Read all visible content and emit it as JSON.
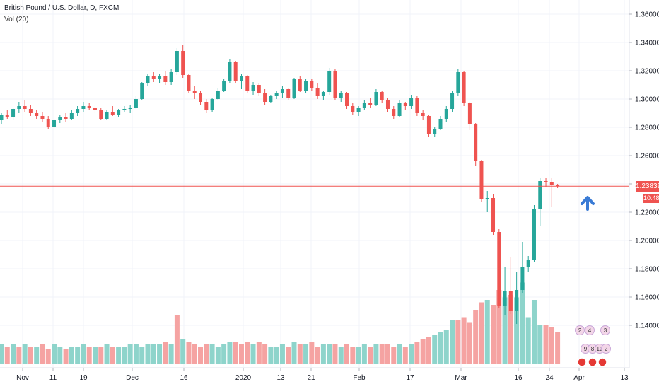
{
  "legend": {
    "symbol": "British Pound / U.S. Dollar, D, FXCM",
    "volume": "Vol (20)"
  },
  "last_price_label": "1.23839",
  "countdown_label": "10:48",
  "colors": {
    "up": "#26a69a",
    "down": "#ef5350",
    "vol_up": "#8ed4cb",
    "vol_down": "#f5a3a2",
    "arrow": "#3a7bd5",
    "grid": "#f0f3fa"
  },
  "events_icon_labels": [
    "2",
    "4",
    "3",
    "9",
    "8",
    "10",
    "2"
  ],
  "chart_data": {
    "type": "candlestick",
    "title": "British Pound / U.S. Dollar, D, FXCM",
    "ylim": [
      1.12,
      1.37
    ],
    "y_ticks": [
      "1.36000",
      "1.34000",
      "1.32000",
      "1.30000",
      "1.28000",
      "1.26000",
      "1.24000",
      "1.22000",
      "1.20000",
      "1.18000",
      "1.16000",
      "1.14000"
    ],
    "x_ticks": [
      "Nov",
      "11",
      "19",
      "Dec",
      "16",
      "2020",
      "13",
      "21",
      "Feb",
      "17",
      "Mar",
      "16",
      "24",
      "Apr",
      "13"
    ],
    "last_price": 1.23839,
    "candles": [
      [
        1.285,
        1.29,
        1.282,
        1.289
      ],
      [
        1.289,
        1.292,
        1.286,
        1.287
      ],
      [
        1.287,
        1.294,
        1.285,
        1.293
      ],
      [
        1.293,
        1.298,
        1.29,
        1.295
      ],
      [
        1.295,
        1.299,
        1.291,
        1.293
      ],
      [
        1.293,
        1.296,
        1.288,
        1.29
      ],
      [
        1.29,
        1.292,
        1.286,
        1.288
      ],
      [
        1.288,
        1.291,
        1.284,
        1.286
      ],
      [
        1.286,
        1.288,
        1.279,
        1.28
      ],
      [
        1.28,
        1.286,
        1.279,
        1.285
      ],
      [
        1.285,
        1.289,
        1.283,
        1.287
      ],
      [
        1.287,
        1.29,
        1.284,
        1.286
      ],
      [
        1.286,
        1.292,
        1.285,
        1.29
      ],
      [
        1.29,
        1.295,
        1.288,
        1.293
      ],
      [
        1.293,
        1.298,
        1.291,
        1.295
      ],
      [
        1.295,
        1.297,
        1.292,
        1.294
      ],
      [
        1.294,
        1.296,
        1.29,
        1.292
      ],
      [
        1.292,
        1.294,
        1.285,
        1.286
      ],
      [
        1.286,
        1.292,
        1.285,
        1.291
      ],
      [
        1.291,
        1.295,
        1.288,
        1.289
      ],
      [
        1.289,
        1.293,
        1.287,
        1.292
      ],
      [
        1.292,
        1.295,
        1.291,
        1.293
      ],
      [
        1.293,
        1.296,
        1.29,
        1.294
      ],
      [
        1.294,
        1.302,
        1.293,
        1.3
      ],
      [
        1.3,
        1.312,
        1.299,
        1.311
      ],
      [
        1.311,
        1.318,
        1.309,
        1.316
      ],
      [
        1.316,
        1.319,
        1.312,
        1.314
      ],
      [
        1.314,
        1.318,
        1.311,
        1.316
      ],
      [
        1.316,
        1.32,
        1.31,
        1.312
      ],
      [
        1.312,
        1.321,
        1.31,
        1.319
      ],
      [
        1.319,
        1.336,
        1.317,
        1.334
      ],
      [
        1.334,
        1.338,
        1.315,
        1.317
      ],
      [
        1.317,
        1.318,
        1.304,
        1.306
      ],
      [
        1.306,
        1.309,
        1.3,
        1.304
      ],
      [
        1.304,
        1.306,
        1.296,
        1.298
      ],
      [
        1.298,
        1.3,
        1.29,
        1.292
      ],
      [
        1.292,
        1.301,
        1.291,
        1.3
      ],
      [
        1.3,
        1.308,
        1.299,
        1.306
      ],
      [
        1.306,
        1.314,
        1.305,
        1.313
      ],
      [
        1.313,
        1.328,
        1.311,
        1.326
      ],
      [
        1.326,
        1.327,
        1.311,
        1.313
      ],
      [
        1.313,
        1.318,
        1.307,
        1.316
      ],
      [
        1.316,
        1.317,
        1.304,
        1.306
      ],
      [
        1.306,
        1.312,
        1.303,
        1.31
      ],
      [
        1.31,
        1.311,
        1.302,
        1.304
      ],
      [
        1.304,
        1.307,
        1.296,
        1.298
      ],
      [
        1.298,
        1.303,
        1.297,
        1.302
      ],
      [
        1.302,
        1.306,
        1.3,
        1.304
      ],
      [
        1.304,
        1.309,
        1.301,
        1.307
      ],
      [
        1.307,
        1.308,
        1.299,
        1.301
      ],
      [
        1.301,
        1.315,
        1.3,
        1.314
      ],
      [
        1.314,
        1.316,
        1.305,
        1.306
      ],
      [
        1.306,
        1.314,
        1.304,
        1.313
      ],
      [
        1.313,
        1.314,
        1.306,
        1.308
      ],
      [
        1.308,
        1.311,
        1.3,
        1.302
      ],
      [
        1.302,
        1.306,
        1.299,
        1.305
      ],
      [
        1.305,
        1.322,
        1.303,
        1.32
      ],
      [
        1.32,
        1.321,
        1.299,
        1.301
      ],
      [
        1.301,
        1.306,
        1.298,
        1.304
      ],
      [
        1.304,
        1.305,
        1.293,
        1.295
      ],
      [
        1.295,
        1.297,
        1.289,
        1.291
      ],
      [
        1.291,
        1.295,
        1.288,
        1.294
      ],
      [
        1.294,
        1.299,
        1.292,
        1.297
      ],
      [
        1.297,
        1.301,
        1.294,
        1.296
      ],
      [
        1.296,
        1.307,
        1.295,
        1.305
      ],
      [
        1.305,
        1.306,
        1.297,
        1.299
      ],
      [
        1.299,
        1.301,
        1.291,
        1.293
      ],
      [
        1.293,
        1.295,
        1.286,
        1.288
      ],
      [
        1.288,
        1.299,
        1.287,
        1.297
      ],
      [
        1.297,
        1.298,
        1.292,
        1.295
      ],
      [
        1.295,
        1.303,
        1.293,
        1.301
      ],
      [
        1.301,
        1.302,
        1.288,
        1.29
      ],
      [
        1.29,
        1.292,
        1.285,
        1.288
      ],
      [
        1.288,
        1.289,
        1.273,
        1.275
      ],
      [
        1.275,
        1.28,
        1.273,
        1.279
      ],
      [
        1.279,
        1.288,
        1.278,
        1.286
      ],
      [
        1.286,
        1.295,
        1.284,
        1.293
      ],
      [
        1.293,
        1.306,
        1.291,
        1.304
      ],
      [
        1.304,
        1.321,
        1.302,
        1.319
      ],
      [
        1.319,
        1.32,
        1.295,
        1.297
      ],
      [
        1.297,
        1.298,
        1.278,
        1.282
      ],
      [
        1.282,
        1.283,
        1.253,
        1.256
      ],
      [
        1.256,
        1.257,
        1.227,
        1.229
      ],
      [
        1.229,
        1.235,
        1.22,
        1.23
      ],
      [
        1.23,
        1.233,
        1.204,
        1.206
      ],
      [
        1.206,
        1.208,
        1.152,
        1.154
      ],
      [
        1.154,
        1.181,
        1.147,
        1.164
      ],
      [
        1.164,
        1.188,
        1.148,
        1.15
      ],
      [
        1.15,
        1.178,
        1.141,
        1.165
      ],
      [
        1.165,
        1.199,
        1.163,
        1.181
      ],
      [
        1.181,
        1.189,
        1.178,
        1.186
      ],
      [
        1.186,
        1.225,
        1.185,
        1.222
      ],
      [
        1.222,
        1.244,
        1.21,
        1.242
      ],
      [
        1.242,
        1.244,
        1.238,
        1.241
      ],
      [
        1.241,
        1.244,
        1.224,
        1.239
      ],
      [
        1.239,
        1.24,
        1.237,
        1.2384
      ]
    ],
    "volume": [
      [
        8,
        1
      ],
      [
        7,
        0
      ],
      [
        8,
        1
      ],
      [
        7,
        0
      ],
      [
        8,
        1
      ],
      [
        7,
        0
      ],
      [
        7,
        1
      ],
      [
        8,
        0
      ],
      [
        6,
        0
      ],
      [
        8,
        1
      ],
      [
        7,
        1
      ],
      [
        6,
        0
      ],
      [
        7,
        1
      ],
      [
        7,
        1
      ],
      [
        8,
        1
      ],
      [
        7,
        0
      ],
      [
        7,
        1
      ],
      [
        7,
        0
      ],
      [
        8,
        1
      ],
      [
        7,
        0
      ],
      [
        7,
        1
      ],
      [
        7,
        1
      ],
      [
        8,
        1
      ],
      [
        8,
        1
      ],
      [
        7,
        1
      ],
      [
        8,
        1
      ],
      [
        8,
        1
      ],
      [
        8,
        1
      ],
      [
        9,
        0
      ],
      [
        8,
        1
      ],
      [
        20,
        0
      ],
      [
        10,
        1
      ],
      [
        9,
        0
      ],
      [
        8,
        0
      ],
      [
        7,
        0
      ],
      [
        8,
        0
      ],
      [
        8,
        1
      ],
      [
        7,
        1
      ],
      [
        8,
        1
      ],
      [
        9,
        1
      ],
      [
        9,
        0
      ],
      [
        8,
        0
      ],
      [
        9,
        0
      ],
      [
        8,
        1
      ],
      [
        9,
        0
      ],
      [
        8,
        0
      ],
      [
        7,
        1
      ],
      [
        7,
        1
      ],
      [
        8,
        1
      ],
      [
        7,
        0
      ],
      [
        9,
        1
      ],
      [
        8,
        0
      ],
      [
        8,
        1
      ],
      [
        9,
        0
      ],
      [
        7,
        0
      ],
      [
        8,
        1
      ],
      [
        8,
        1
      ],
      [
        8,
        0
      ],
      [
        7,
        1
      ],
      [
        8,
        0
      ],
      [
        7,
        0
      ],
      [
        7,
        1
      ],
      [
        8,
        1
      ],
      [
        7,
        0
      ],
      [
        8,
        1
      ],
      [
        8,
        0
      ],
      [
        8,
        0
      ],
      [
        7,
        0
      ],
      [
        8,
        1
      ],
      [
        7,
        0
      ],
      [
        8,
        1
      ],
      [
        9,
        0
      ],
      [
        10,
        0
      ],
      [
        11,
        0
      ],
      [
        12,
        1
      ],
      [
        13,
        1
      ],
      [
        14,
        1
      ],
      [
        18,
        1
      ],
      [
        18,
        0
      ],
      [
        19,
        0
      ],
      [
        17,
        0
      ],
      [
        22,
        0
      ],
      [
        25,
        0
      ],
      [
        26,
        1
      ],
      [
        24,
        0
      ],
      [
        30,
        0
      ],
      [
        27,
        1
      ],
      [
        28,
        0
      ],
      [
        27,
        1
      ],
      [
        33,
        1
      ],
      [
        19,
        1
      ],
      [
        26,
        1
      ],
      [
        16,
        1
      ],
      [
        16,
        0
      ],
      [
        15,
        0
      ],
      [
        13,
        0
      ]
    ]
  }
}
